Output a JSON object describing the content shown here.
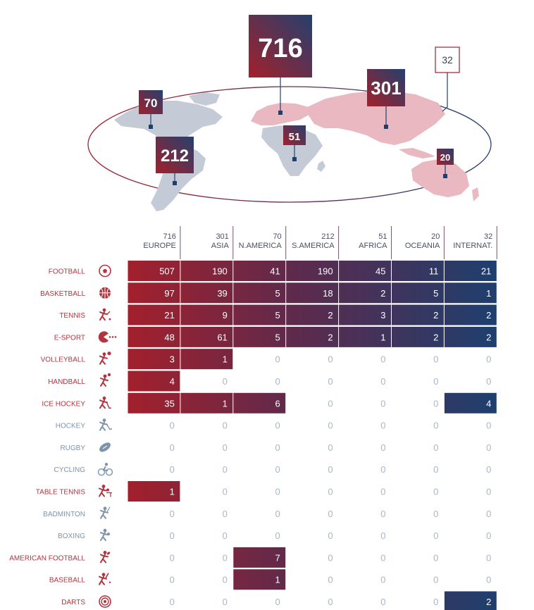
{
  "colors": {
    "red": "#a3202c",
    "navy": "#1e3f6e",
    "active_label": "#b3343f",
    "inactive_label": "#7f93ab",
    "zero_text": "#a9b5c7",
    "continent_grey": "#c5cbd6",
    "continent_pink": "#e9b8c0"
  },
  "map": {
    "badges": [
      {
        "region": "EUROPE",
        "value": "716"
      },
      {
        "region": "N.AMERICA",
        "value": "70"
      },
      {
        "region": "S.AMERICA",
        "value": "212"
      },
      {
        "region": "AFRICA",
        "value": "51"
      },
      {
        "region": "ASIA",
        "value": "301"
      },
      {
        "region": "OCEANIA",
        "value": "20"
      },
      {
        "region": "INTERNAT.",
        "value": "32"
      }
    ]
  },
  "chart_data": {
    "type": "heatmap",
    "columns": [
      {
        "name": "EUROPE",
        "total": "716"
      },
      {
        "name": "ASIA",
        "total": "301"
      },
      {
        "name": "N.AMERICA",
        "total": "70"
      },
      {
        "name": "S.AMERICA",
        "total": "212"
      },
      {
        "name": "AFRICA",
        "total": "51"
      },
      {
        "name": "OCEANIA",
        "total": "20"
      },
      {
        "name": "INTERNAT.",
        "total": "32"
      }
    ],
    "rows": [
      {
        "sport": "FOOTBALL",
        "icon": "football-icon",
        "values": [
          507,
          190,
          41,
          190,
          45,
          11,
          21
        ]
      },
      {
        "sport": "BASKETBALL",
        "icon": "basketball-icon",
        "values": [
          97,
          39,
          5,
          18,
          2,
          5,
          1
        ]
      },
      {
        "sport": "TENNIS",
        "icon": "tennis-player-icon",
        "values": [
          21,
          9,
          5,
          2,
          3,
          2,
          2
        ]
      },
      {
        "sport": "E-SPORT",
        "icon": "pacman-icon",
        "values": [
          48,
          61,
          5,
          2,
          1,
          2,
          2
        ]
      },
      {
        "sport": "VOLLEYBALL",
        "icon": "volleyball-player-icon",
        "values": [
          3,
          1,
          0,
          0,
          0,
          0,
          0
        ]
      },
      {
        "sport": "HANDBALL",
        "icon": "handball-player-icon",
        "values": [
          4,
          0,
          0,
          0,
          0,
          0,
          0
        ]
      },
      {
        "sport": "ICE HOCKEY",
        "icon": "ice-hockey-player-icon",
        "values": [
          35,
          1,
          6,
          0,
          0,
          0,
          4
        ]
      },
      {
        "sport": "HOCKEY",
        "icon": "field-hockey-player-icon",
        "values": [
          0,
          0,
          0,
          0,
          0,
          0,
          0
        ]
      },
      {
        "sport": "RUGBY",
        "icon": "rugby-ball-icon",
        "values": [
          0,
          0,
          0,
          0,
          0,
          0,
          0
        ]
      },
      {
        "sport": "CYCLING",
        "icon": "cyclist-icon",
        "values": [
          0,
          0,
          0,
          0,
          0,
          0,
          0
        ]
      },
      {
        "sport": "TABLE TENNIS",
        "icon": "table-tennis-player-icon",
        "values": [
          1,
          0,
          0,
          0,
          0,
          0,
          0
        ]
      },
      {
        "sport": "BADMINTON",
        "icon": "badminton-player-icon",
        "values": [
          0,
          0,
          0,
          0,
          0,
          0,
          0
        ]
      },
      {
        "sport": "BOXING",
        "icon": "boxer-icon",
        "values": [
          0,
          0,
          0,
          0,
          0,
          0,
          0
        ]
      },
      {
        "sport": "AMERICAN FOOTBALL",
        "icon": "american-football-player-icon",
        "values": [
          0,
          0,
          7,
          0,
          0,
          0,
          0
        ]
      },
      {
        "sport": "BASEBALL",
        "icon": "baseball-player-icon",
        "values": [
          0,
          0,
          1,
          0,
          0,
          0,
          0
        ]
      },
      {
        "sport": "DARTS",
        "icon": "dartboard-icon",
        "values": [
          0,
          0,
          0,
          0,
          0,
          0,
          2
        ]
      }
    ]
  }
}
